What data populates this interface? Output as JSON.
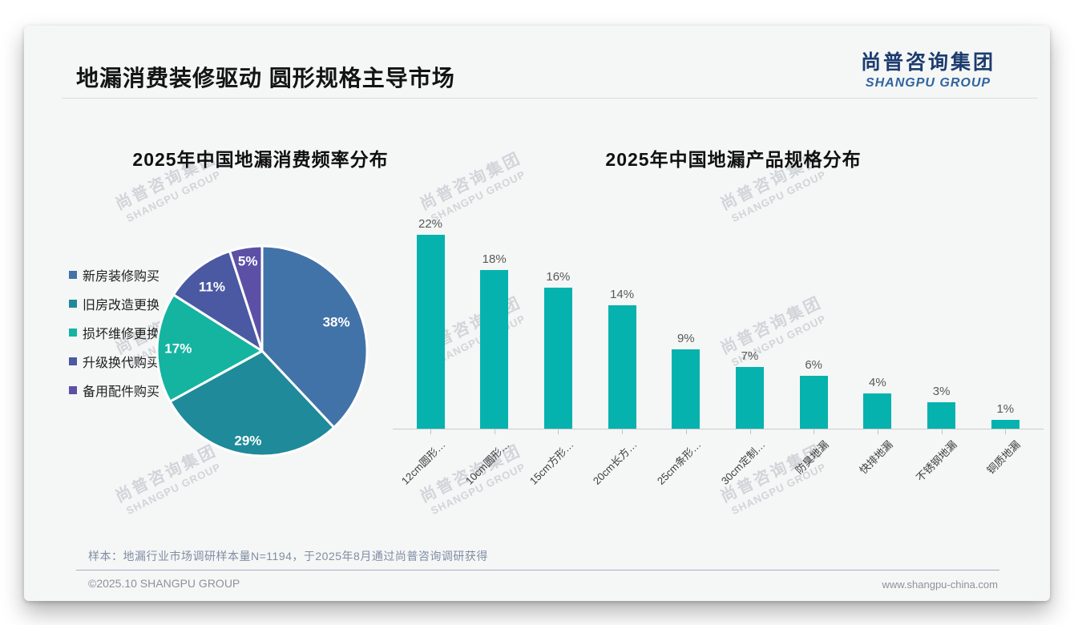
{
  "page": {
    "title": "地漏消费装修驱动 圆形规格主导市场",
    "logo": {
      "cn": "尚普咨询集团",
      "en": "SHANGPU GROUP"
    },
    "watermark": {
      "cn": "尚普咨询集团",
      "en": "SHANGPU GROUP"
    },
    "footer": {
      "note": "样本：地漏行业市场调研样本量N=1194，于2025年8月通过尚普咨询调研获得",
      "copyright": "©2025.10 SHANGPU GROUP",
      "website": "www.shangpu-china.com"
    }
  },
  "chart_data": [
    {
      "type": "pie",
      "title": "2025年中国地漏消费频率分布",
      "labels": [
        "新房装修购买",
        "旧房改造更换",
        "损坏维修更换",
        "升级换代购买",
        "备用配件购买"
      ],
      "values": [
        38,
        29,
        17,
        11,
        5
      ],
      "unit": "%",
      "colors": [
        "#4173A8",
        "#1F8A99",
        "#14B4A1",
        "#4A59A2",
        "#5C50A6"
      ],
      "legend_position": "left",
      "start_angle_deg": 0,
      "direction": "clockwise",
      "slice_border_color": "#FFFFFF"
    },
    {
      "type": "bar",
      "title": "2025年中国地漏产品规格分布",
      "categories": [
        "12cm圆形…",
        "10cm圆形…",
        "15cm方形…",
        "20cm长方…",
        "25cm条形…",
        "30cm定制…",
        "防臭地漏",
        "快排地漏",
        "不锈钢地漏",
        "铜质地漏"
      ],
      "values": [
        22,
        18,
        16,
        14,
        9,
        7,
        6,
        4,
        3,
        1
      ],
      "unit": "%",
      "bar_color": "#06B2AE",
      "label_color": "#595959",
      "data_labels": true,
      "xlabel": "",
      "ylabel": "",
      "ylim": [
        0,
        24
      ],
      "grid": false,
      "x_tick_rotation_deg": 45
    }
  ]
}
